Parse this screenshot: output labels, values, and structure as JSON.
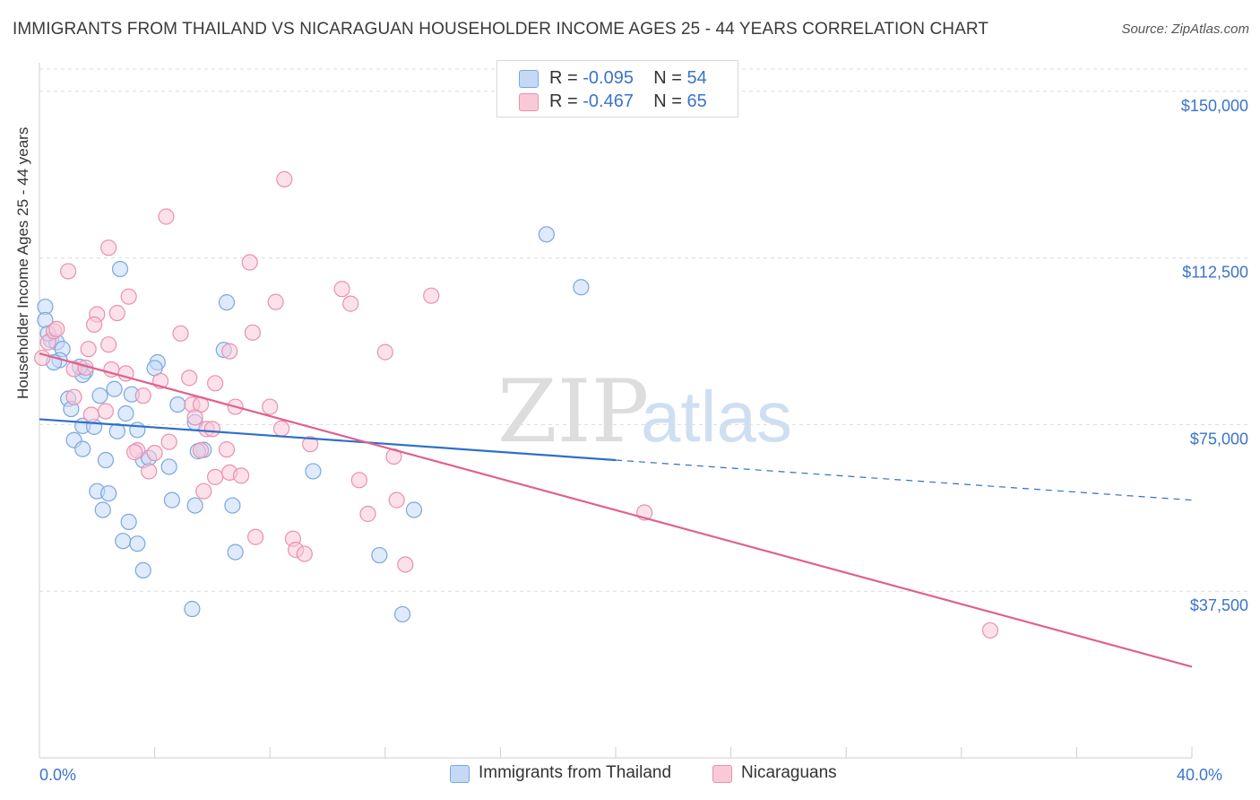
{
  "title": "IMMIGRANTS FROM THAILAND VS NICARAGUAN HOUSEHOLDER INCOME AGES 25 - 44 YEARS CORRELATION CHART",
  "source": "Source: ZipAtlas.com",
  "watermark": {
    "zip": "ZIP",
    "atlas": "atlas"
  },
  "colors": {
    "blue_fill": "#c5d9f5",
    "blue_stroke": "#7aa7e0",
    "blue_line": "#2f6fca",
    "pink_fill": "#f9c9d8",
    "pink_stroke": "#e891af",
    "pink_line": "#e0608d",
    "tick_text": "#3b74c9",
    "grid": "#dcdcdc"
  },
  "legend": {
    "rows": [
      {
        "r_label": "R = ",
        "r_value": "-0.095",
        "n_label": "N = ",
        "n_value": "54"
      },
      {
        "r_label": "R = ",
        "r_value": "-0.467",
        "n_label": "N = ",
        "n_value": "65"
      }
    ]
  },
  "chart_data": {
    "type": "scatter",
    "title": "IMMIGRANTS FROM THAILAND VS NICARAGUAN HOUSEHOLDER INCOME AGES 25 - 44 YEARS CORRELATION CHART",
    "xlabel": "",
    "ylabel": "Householder Income Ages 25 - 44 years",
    "xlim": [
      0,
      40
    ],
    "ylim": [
      0,
      155000
    ],
    "x_ticks": [
      0,
      40
    ],
    "x_tick_labels": [
      "0.0%",
      "40.0%"
    ],
    "y_ticks": [
      37500,
      75000,
      112500,
      150000
    ],
    "y_tick_labels": [
      "$37,500",
      "$75,000",
      "$112,500",
      "$150,000"
    ],
    "grid": true,
    "legend_position": "top-center",
    "series": [
      {
        "name": "Immigrants from Thailand",
        "color": "#7aa7e0",
        "trend": {
          "x": [
            0,
            20
          ],
          "y": [
            76200,
            67000
          ],
          "extended_to": [
            40,
            58000
          ]
        },
        "points": [
          [
            0.2,
            101500
          ],
          [
            0.2,
            98500
          ],
          [
            0.4,
            94000
          ],
          [
            0.6,
            93500
          ],
          [
            0.8,
            92000
          ],
          [
            0.7,
            89500
          ],
          [
            0.5,
            89000
          ],
          [
            1.6,
            87000
          ],
          [
            1.5,
            86200
          ],
          [
            2.8,
            110000
          ],
          [
            4.1,
            89000
          ],
          [
            4.0,
            87700
          ],
          [
            6.5,
            102500
          ],
          [
            6.4,
            91800
          ],
          [
            17.6,
            117800
          ],
          [
            18.8,
            105900
          ],
          [
            1.0,
            80800
          ],
          [
            1.1,
            78500
          ],
          [
            2.1,
            81500
          ],
          [
            2.6,
            83000
          ],
          [
            3.2,
            81800
          ],
          [
            3.0,
            77500
          ],
          [
            4.8,
            79500
          ],
          [
            1.5,
            74700
          ],
          [
            1.9,
            74500
          ],
          [
            2.7,
            73500
          ],
          [
            3.4,
            73800
          ],
          [
            5.4,
            75500
          ],
          [
            5.7,
            69300
          ],
          [
            5.5,
            69000
          ],
          [
            1.2,
            71500
          ],
          [
            1.5,
            69500
          ],
          [
            2.3,
            67000
          ],
          [
            3.6,
            67000
          ],
          [
            3.8,
            67500
          ],
          [
            4.5,
            65500
          ],
          [
            9.5,
            64500
          ],
          [
            2.0,
            60000
          ],
          [
            2.4,
            59500
          ],
          [
            4.6,
            58000
          ],
          [
            5.4,
            56800
          ],
          [
            6.7,
            56800
          ],
          [
            13.0,
            55800
          ],
          [
            2.2,
            55800
          ],
          [
            3.1,
            53100
          ],
          [
            2.9,
            48800
          ],
          [
            3.4,
            48200
          ],
          [
            6.8,
            46300
          ],
          [
            11.8,
            45600
          ],
          [
            3.6,
            42200
          ],
          [
            5.3,
            33500
          ],
          [
            12.6,
            32300
          ],
          [
            0.3,
            95500
          ],
          [
            1.4,
            88000
          ]
        ]
      },
      {
        "name": "Nicaraguans",
        "color": "#e891af",
        "trend": {
          "x": [
            0,
            40
          ],
          "y": [
            91000,
            20500
          ]
        },
        "points": [
          [
            0.1,
            90000
          ],
          [
            0.3,
            93500
          ],
          [
            0.5,
            96000
          ],
          [
            1.0,
            109500
          ],
          [
            2.4,
            114800
          ],
          [
            3.1,
            103800
          ],
          [
            2.0,
            99800
          ],
          [
            2.7,
            100100
          ],
          [
            1.9,
            97500
          ],
          [
            2.4,
            93000
          ],
          [
            4.4,
            121800
          ],
          [
            4.9,
            95500
          ],
          [
            7.3,
            111500
          ],
          [
            8.5,
            130200
          ],
          [
            8.2,
            102600
          ],
          [
            10.5,
            105500
          ],
          [
            10.8,
            102200
          ],
          [
            13.6,
            104000
          ],
          [
            7.4,
            95700
          ],
          [
            6.6,
            91500
          ],
          [
            12.0,
            91300
          ],
          [
            1.2,
            87500
          ],
          [
            1.6,
            87800
          ],
          [
            2.5,
            87400
          ],
          [
            4.2,
            84800
          ],
          [
            5.2,
            85500
          ],
          [
            6.1,
            84300
          ],
          [
            3.6,
            81500
          ],
          [
            1.2,
            81200
          ],
          [
            1.8,
            77200
          ],
          [
            2.3,
            78000
          ],
          [
            5.3,
            79500
          ],
          [
            5.6,
            79500
          ],
          [
            5.4,
            76600
          ],
          [
            6.8,
            79000
          ],
          [
            8.0,
            79000
          ],
          [
            5.8,
            74000
          ],
          [
            6.0,
            74000
          ],
          [
            8.4,
            74100
          ],
          [
            9.4,
            70600
          ],
          [
            4.5,
            71100
          ],
          [
            3.4,
            69200
          ],
          [
            3.3,
            68800
          ],
          [
            4.0,
            68600
          ],
          [
            5.6,
            69200
          ],
          [
            6.5,
            69400
          ],
          [
            12.3,
            67800
          ],
          [
            3.8,
            64500
          ],
          [
            6.1,
            63200
          ],
          [
            6.6,
            64200
          ],
          [
            7.0,
            63500
          ],
          [
            11.1,
            62500
          ],
          [
            5.7,
            60000
          ],
          [
            12.4,
            58000
          ],
          [
            11.4,
            54900
          ],
          [
            21.0,
            55200
          ],
          [
            7.5,
            49700
          ],
          [
            8.8,
            49300
          ],
          [
            8.9,
            46800
          ],
          [
            9.2,
            45900
          ],
          [
            12.7,
            43500
          ],
          [
            33.0,
            28700
          ],
          [
            0.6,
            96500
          ],
          [
            1.7,
            92000
          ],
          [
            3.0,
            86500
          ]
        ]
      }
    ]
  },
  "bottom_legend": [
    {
      "label": "Immigrants from Thailand"
    },
    {
      "label": "Nicaraguans"
    }
  ]
}
